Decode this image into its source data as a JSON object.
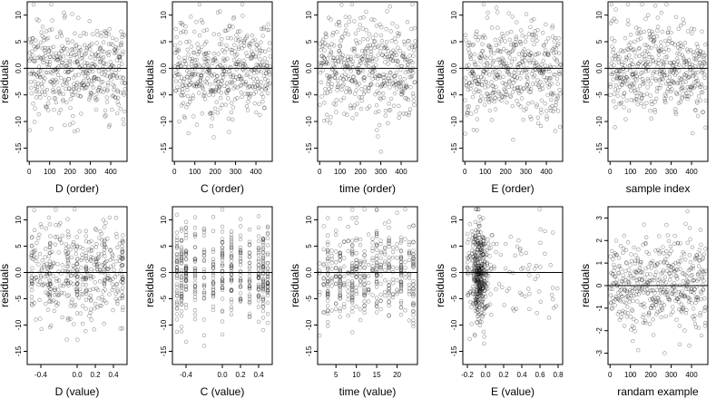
{
  "figure": {
    "panels": [
      {
        "id": "d-order",
        "xlabel": "D (order)",
        "ylabel": "residuals",
        "xticks": [
          "0",
          "100",
          "200",
          "300",
          "400"
        ],
        "yticks": [
          "-15",
          "-10",
          "-5",
          "0.0",
          "5",
          "10"
        ]
      },
      {
        "id": "c-order",
        "xlabel": "C (order)",
        "ylabel": "residuals",
        "xticks": [
          "0",
          "100",
          "200",
          "300",
          "400"
        ],
        "yticks": [
          "-15",
          "-10",
          "-5",
          "0.0",
          "5",
          "10"
        ]
      },
      {
        "id": "time-order",
        "xlabel": "time (order)",
        "ylabel": "residuals",
        "xticks": [
          "0",
          "100",
          "200",
          "300",
          "400"
        ],
        "yticks": [
          "-15",
          "-10",
          "-5",
          "0.0",
          "5",
          "10"
        ]
      },
      {
        "id": "e-order",
        "xlabel": "E (order)",
        "ylabel": "residuals",
        "xticks": [
          "0",
          "100",
          "200",
          "300",
          "400"
        ],
        "yticks": [
          "-15",
          "-10",
          "-5",
          "0.0",
          "5",
          "10"
        ]
      },
      {
        "id": "sample-index",
        "xlabel": "sample index",
        "ylabel": "residuals",
        "xticks": [
          "0",
          "100",
          "200",
          "300",
          "400"
        ],
        "yticks": [
          "-15",
          "-10",
          "-5",
          "0.0",
          "5",
          "10"
        ]
      },
      {
        "id": "d-value",
        "xlabel": "D (value)",
        "ylabel": "residuals",
        "xticks": [
          "-0.4",
          "0.0",
          "0.2",
          "0.4"
        ],
        "yticks": [
          "-15",
          "-10",
          "-5",
          "0.0",
          "5",
          "10"
        ]
      },
      {
        "id": "c-value",
        "xlabel": "C (value)",
        "ylabel": "residuals",
        "xticks": [
          "-0.4",
          "0.0",
          "0.2",
          "0.4"
        ],
        "yticks": [
          "-15",
          "-10",
          "-5",
          "0.0",
          "5",
          "10"
        ]
      },
      {
        "id": "time-value",
        "xlabel": "time (value)",
        "ylabel": "residuals",
        "xticks": [
          "5",
          "10",
          "15",
          "20"
        ],
        "yticks": [
          "-15",
          "-10",
          "-5",
          "0.0",
          "5",
          "10"
        ]
      },
      {
        "id": "e-value",
        "xlabel": "E (value)",
        "ylabel": "residuals",
        "xticks": [
          "-0.2",
          "0.0",
          "0.2",
          "0.4",
          "0.6",
          "0.8"
        ],
        "yticks": [
          "-15",
          "-10",
          "-5",
          "0.0",
          "5",
          "10"
        ]
      },
      {
        "id": "random-example",
        "xlabel": "randam example",
        "ylabel": "residuals",
        "xticks": [
          "0",
          "100",
          "200",
          "300",
          "400"
        ],
        "yticks": [
          "-3",
          "-2",
          "-1",
          "0",
          "1",
          "2",
          "3"
        ]
      }
    ]
  },
  "chart_data": [
    {
      "type": "scatter",
      "xlabel": "D (order)",
      "ylabel": "residuals",
      "xlim": [
        -10,
        480
      ],
      "ylim": [
        -17.5,
        12.5
      ],
      "x_ticks": [
        0,
        100,
        200,
        300,
        400
      ],
      "y_ticks": [
        -15,
        -10,
        -5,
        0,
        5,
        10
      ],
      "reference_line_y": 0,
      "n_points": 470,
      "x_range": [
        1,
        470
      ],
      "residual_range": [
        -16.5,
        12
      ],
      "x_kind": "order"
    },
    {
      "type": "scatter",
      "xlabel": "C (order)",
      "ylabel": "residuals",
      "xlim": [
        -10,
        480
      ],
      "ylim": [
        -17.5,
        12.5
      ],
      "x_ticks": [
        0,
        100,
        200,
        300,
        400
      ],
      "y_ticks": [
        -15,
        -10,
        -5,
        0,
        5,
        10
      ],
      "reference_line_y": 0,
      "n_points": 470,
      "x_range": [
        1,
        470
      ],
      "residual_range": [
        -16.5,
        12
      ],
      "x_kind": "order"
    },
    {
      "type": "scatter",
      "xlabel": "time (order)",
      "ylabel": "residuals",
      "xlim": [
        -10,
        480
      ],
      "ylim": [
        -17.5,
        12.5
      ],
      "x_ticks": [
        0,
        100,
        200,
        300,
        400
      ],
      "y_ticks": [
        -15,
        -10,
        -5,
        0,
        5,
        10
      ],
      "reference_line_y": 0,
      "n_points": 470,
      "x_range": [
        1,
        470
      ],
      "residual_range": [
        -16.5,
        12
      ],
      "x_kind": "order"
    },
    {
      "type": "scatter",
      "xlabel": "E (order)",
      "ylabel": "residuals",
      "xlim": [
        -10,
        480
      ],
      "ylim": [
        -17.5,
        12.5
      ],
      "x_ticks": [
        0,
        100,
        200,
        300,
        400
      ],
      "y_ticks": [
        -15,
        -10,
        -5,
        0,
        5,
        10
      ],
      "reference_line_y": 0,
      "n_points": 470,
      "x_range": [
        1,
        470
      ],
      "residual_range": [
        -16.5,
        12
      ],
      "x_kind": "order"
    },
    {
      "type": "scatter",
      "xlabel": "sample index",
      "ylabel": "residuals",
      "xlim": [
        -10,
        480
      ],
      "ylim": [
        -17.5,
        12.5
      ],
      "x_ticks": [
        0,
        100,
        200,
        300,
        400
      ],
      "y_ticks": [
        -15,
        -10,
        -5,
        0,
        5,
        10
      ],
      "reference_line_y": 0,
      "n_points": 470,
      "x_range": [
        1,
        470
      ],
      "residual_range": [
        -16.5,
        12
      ],
      "x_kind": "order"
    },
    {
      "type": "scatter",
      "xlabel": "D (value)",
      "ylabel": "residuals",
      "xlim": [
        -0.55,
        0.55
      ],
      "ylim": [
        -17.5,
        12.5
      ],
      "x_ticks": [
        -0.4,
        0,
        0.2,
        0.4
      ],
      "y_ticks": [
        -15,
        -10,
        -5,
        0,
        5,
        10
      ],
      "reference_line_y": 0,
      "n_points": 470,
      "x_range": [
        -0.5,
        0.5
      ],
      "residual_range": [
        -16.5,
        12
      ],
      "x_kind": "uniform",
      "x_bands": [
        -0.5,
        -0.3,
        -0.1,
        0,
        0.1,
        0.15,
        0.3,
        0.5
      ]
    },
    {
      "type": "scatter",
      "xlabel": "C (value)",
      "ylabel": "residuals",
      "xlim": [
        -0.55,
        0.55
      ],
      "ylim": [
        -17.5,
        12.5
      ],
      "x_ticks": [
        -0.4,
        0,
        0.2,
        0.4
      ],
      "y_ticks": [
        -15,
        -10,
        -5,
        0,
        5,
        10
      ],
      "reference_line_y": 0,
      "n_points": 470,
      "x_range": [
        -0.5,
        0.5
      ],
      "residual_range": [
        -16.5,
        12
      ],
      "x_kind": "discrete",
      "x_levels": [
        -0.5,
        -0.45,
        -0.4,
        -0.3,
        -0.2,
        -0.1,
        0,
        0.1,
        0.2,
        0.3,
        0.4,
        0.45,
        0.5
      ]
    },
    {
      "type": "scatter",
      "xlabel": "time (value)",
      "ylabel": "residuals",
      "xlim": [
        0.5,
        25
      ],
      "ylim": [
        -17.5,
        12.5
      ],
      "x_ticks": [
        5,
        10,
        15,
        20
      ],
      "y_ticks": [
        -15,
        -10,
        -5,
        0,
        5,
        10
      ],
      "reference_line_y": 0,
      "n_points": 470,
      "x_range": [
        1,
        24
      ],
      "residual_range": [
        -16.5,
        12
      ],
      "x_kind": "integer",
      "x_bands": [
        3,
        6,
        9,
        12,
        15,
        18,
        21,
        24
      ]
    },
    {
      "type": "scatter",
      "xlabel": "E (value)",
      "ylabel": "residuals",
      "xlim": [
        -0.25,
        0.85
      ],
      "ylim": [
        -17.5,
        12.5
      ],
      "x_ticks": [
        -0.2,
        0,
        0.2,
        0.4,
        0.6,
        0.8
      ],
      "y_ticks": [
        -15,
        -10,
        -5,
        0,
        5,
        10
      ],
      "reference_line_y": 0,
      "n_points": 470,
      "x_range": [
        -0.2,
        0.8
      ],
      "residual_range": [
        -16.5,
        12
      ],
      "x_kind": "skewed",
      "x_mode": -0.07
    },
    {
      "type": "scatter",
      "xlabel": "randam example",
      "ylabel": "residuals",
      "xlim": [
        -10,
        480
      ],
      "ylim": [
        -3.5,
        3.5
      ],
      "x_ticks": [
        0,
        100,
        200,
        300,
        400
      ],
      "y_ticks": [
        -3,
        -2,
        -1,
        0,
        1,
        2,
        3
      ],
      "reference_line_y": 0,
      "n_points": 470,
      "x_range": [
        1,
        470
      ],
      "residual_range": [
        -3,
        3.3
      ],
      "x_kind": "order"
    }
  ]
}
